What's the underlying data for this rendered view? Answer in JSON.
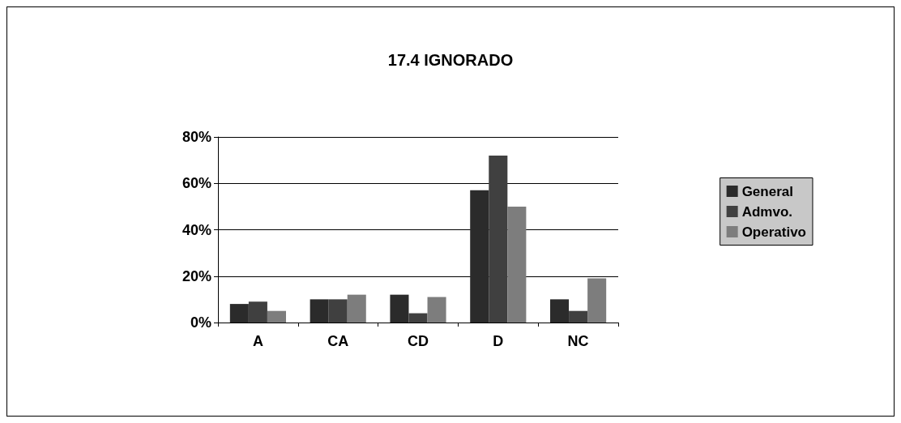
{
  "chart_data": {
    "type": "bar",
    "title": "17.4 IGNORADO",
    "categories": [
      "A",
      "CA",
      "CD",
      "D",
      "NC"
    ],
    "series": [
      {
        "name": "General",
        "color": "#2b2b2b",
        "values": [
          8,
          10,
          12,
          57,
          10
        ]
      },
      {
        "name": "Admvo.",
        "color": "#404040",
        "values": [
          9,
          10,
          4,
          72,
          5
        ]
      },
      {
        "name": "Operativo",
        "color": "#7d7d7d",
        "values": [
          5,
          12,
          11,
          50,
          19
        ]
      }
    ],
    "ylim": [
      0,
      80
    ],
    "yticks": [
      {
        "value": 0,
        "label": "0%"
      },
      {
        "value": 20,
        "label": "20%"
      },
      {
        "value": 40,
        "label": "40%"
      },
      {
        "value": 60,
        "label": "60%"
      },
      {
        "value": 80,
        "label": "80%"
      }
    ],
    "grid": "y",
    "legend": "right"
  }
}
